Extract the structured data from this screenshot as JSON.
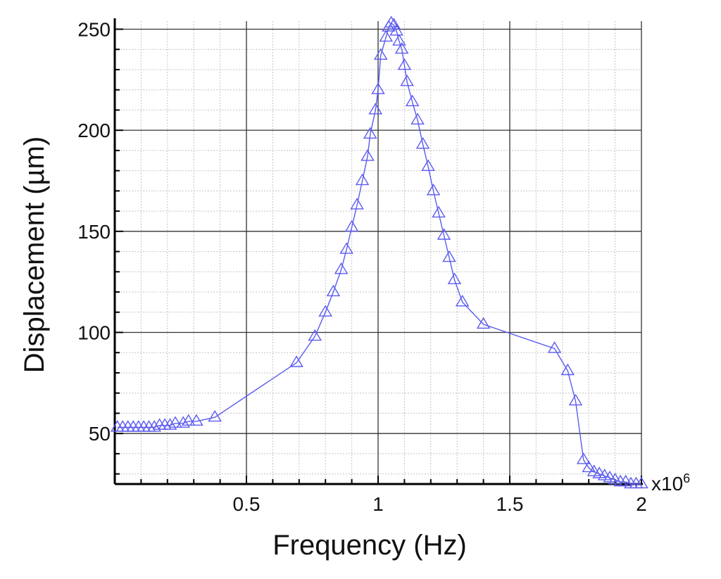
{
  "chart_data": {
    "type": "line",
    "title": "",
    "xlabel": "Frequency (Hz)",
    "ylabel": "Displacement (µm)",
    "x_multiplier_base": "x10",
    "x_multiplier_exp": "6",
    "xlim": [
      0,
      2
    ],
    "ylim": [
      25,
      254
    ],
    "x_ticks": [
      0.5,
      1,
      1.5,
      2
    ],
    "x_tick_labels": [
      "0.5",
      "1",
      "1.5",
      "2"
    ],
    "y_ticks": [
      50,
      100,
      150,
      200,
      250
    ],
    "y_tick_labels": [
      "50",
      "100",
      "150",
      "200",
      "250"
    ],
    "grid": true,
    "minor_grid": true,
    "legend": "none",
    "marker": "triangle-open",
    "series": [
      {
        "color": "#5b5bf0",
        "x": [
          0.01,
          0.03,
          0.05,
          0.07,
          0.09,
          0.11,
          0.13,
          0.15,
          0.17,
          0.19,
          0.21,
          0.23,
          0.26,
          0.28,
          0.31,
          0.38,
          0.69,
          0.76,
          0.8,
          0.83,
          0.86,
          0.88,
          0.9,
          0.92,
          0.94,
          0.96,
          0.97,
          0.99,
          1.0,
          1.01,
          1.03,
          1.04,
          1.05,
          1.06,
          1.07,
          1.08,
          1.09,
          1.1,
          1.11,
          1.13,
          1.15,
          1.17,
          1.19,
          1.21,
          1.23,
          1.25,
          1.27,
          1.29,
          1.32,
          1.4,
          1.67,
          1.72,
          1.75,
          1.78,
          1.8,
          1.82,
          1.84,
          1.86,
          1.88,
          1.9,
          1.92,
          1.94,
          1.96,
          1.98,
          2.0
        ],
        "y": [
          53,
          53,
          53,
          53,
          53,
          53,
          53,
          53,
          54,
          54,
          54,
          55,
          55,
          56,
          56,
          58,
          85,
          98,
          110,
          120,
          131,
          141,
          152,
          163,
          175,
          187,
          198,
          210,
          220,
          237,
          246,
          251,
          253,
          252,
          249,
          244,
          240,
          232,
          224,
          214,
          205,
          193,
          182,
          170,
          159,
          148,
          137,
          126,
          115,
          104,
          92,
          81,
          66,
          37,
          33,
          31,
          30,
          29,
          28,
          27,
          26,
          26,
          25,
          25,
          25
        ]
      }
    ]
  }
}
